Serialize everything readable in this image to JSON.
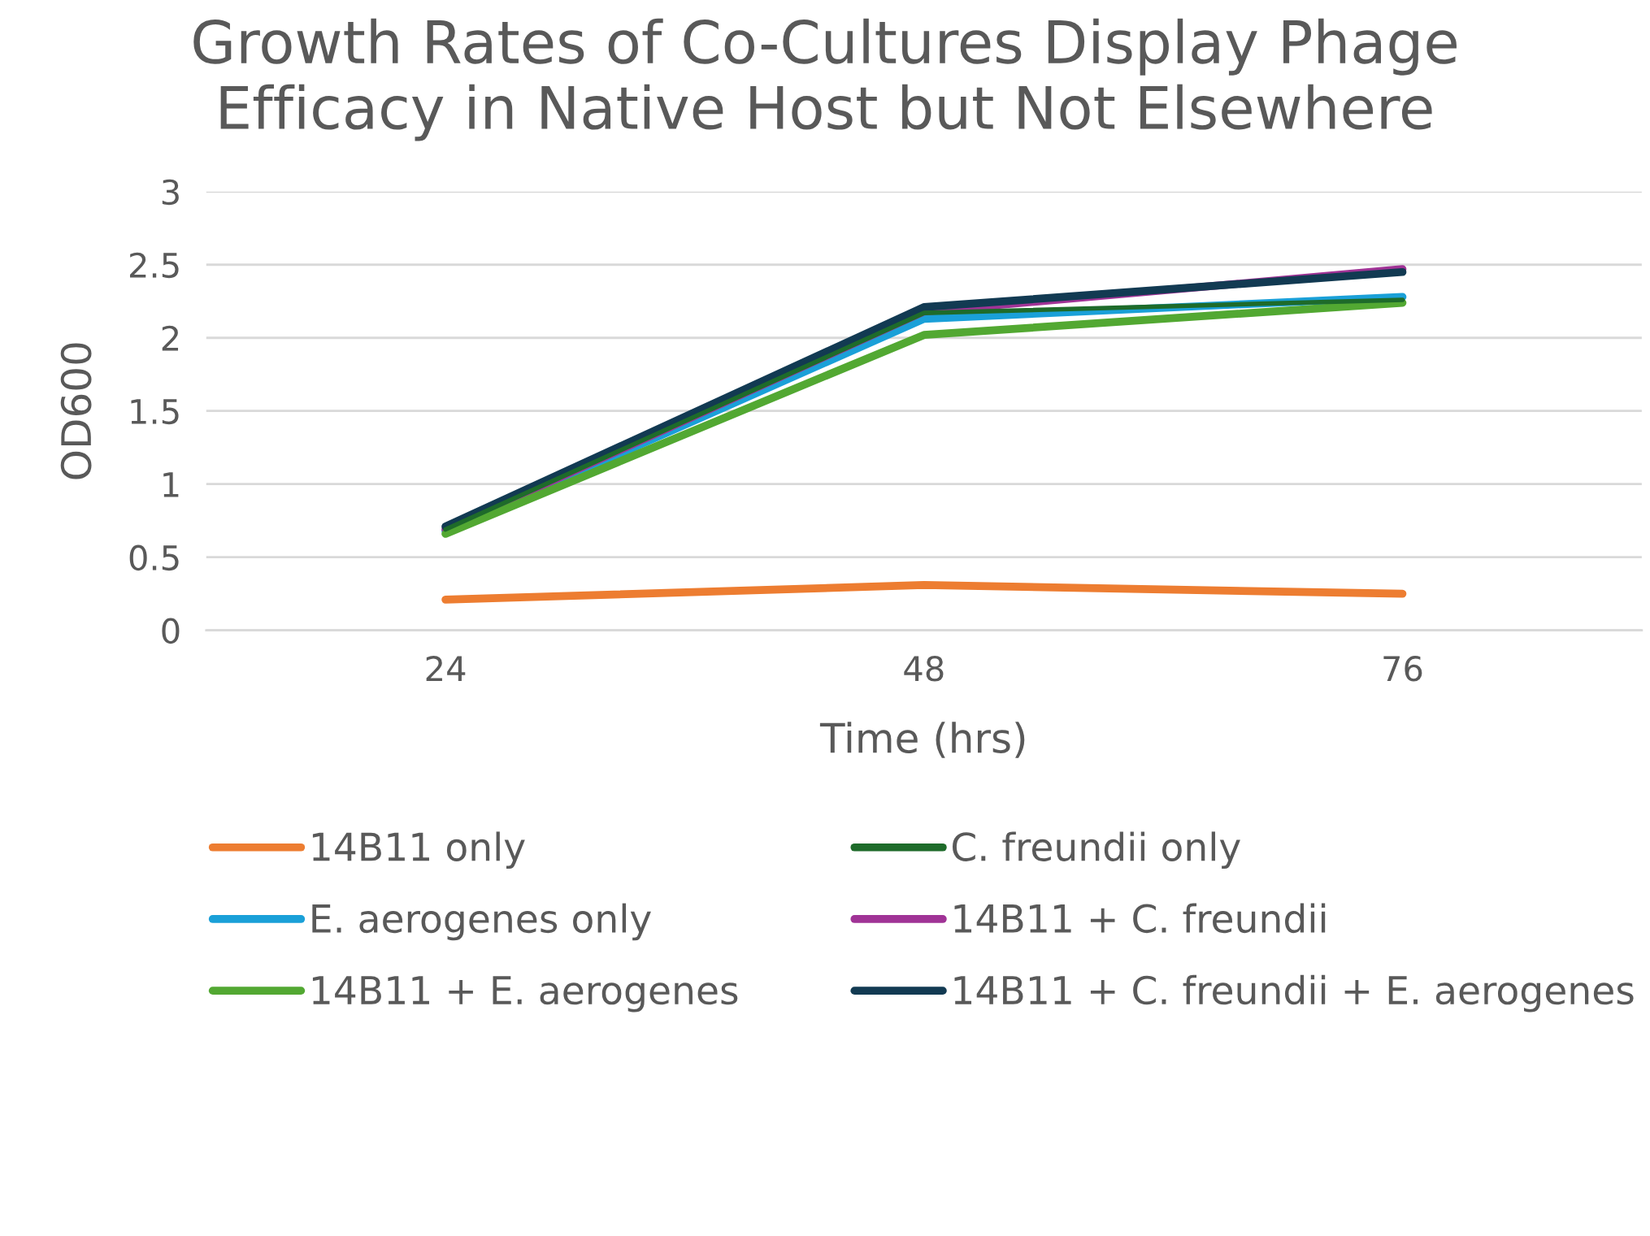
{
  "chart_data": {
    "type": "line",
    "title": "Growth Rates of Co-Cultures Display Phage\nEfficacy in Native Host but Not Elsewhere",
    "xlabel": "Time (hrs)",
    "ylabel": "OD600",
    "categories": [
      "24",
      "48",
      "76"
    ],
    "ylim": [
      0,
      3
    ],
    "yticks": [
      0,
      0.5,
      1,
      1.5,
      2,
      2.5,
      3
    ],
    "grid": "y",
    "legend": "bottom",
    "marker": "none",
    "line_style": "solid",
    "series": [
      {
        "name": "14B11 only",
        "color": "#ed7d31",
        "values": [
          0.21,
          0.31,
          0.25
        ]
      },
      {
        "name": "C. freundii only",
        "color": "#1e6b2a",
        "values": [
          0.69,
          2.17,
          2.26
        ]
      },
      {
        "name": "E. aerogenes only",
        "color": "#1aa0d8",
        "values": [
          0.68,
          2.13,
          2.28
        ]
      },
      {
        "name": "14B11 + C. freundii",
        "color": "#a03396",
        "values": [
          0.69,
          2.18,
          2.47
        ]
      },
      {
        "name": "14B11 + E. aerogenes",
        "color": "#52a832",
        "values": [
          0.66,
          2.02,
          2.24
        ]
      },
      {
        "name": "14B11 + C. freundii + E. aerogenes",
        "color": "#123a52",
        "values": [
          0.71,
          2.21,
          2.45
        ]
      }
    ]
  }
}
